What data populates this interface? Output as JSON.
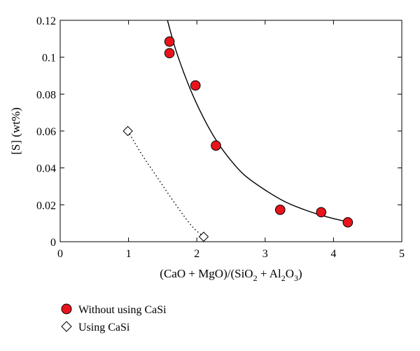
{
  "chart_data": {
    "type": "scatter",
    "xlabel_parts": [
      "(CaO + MgO)/(SiO",
      "2",
      " + Al",
      "2",
      "O",
      "3",
      ")"
    ],
    "ylabel": "[S] (wt%)",
    "xlim": [
      0,
      5
    ],
    "ylim": [
      0,
      0.12
    ],
    "x_ticks": [
      0,
      1,
      2,
      3,
      4,
      5
    ],
    "x_tick_labels": [
      "0",
      "1",
      "2",
      "3",
      "4",
      "5"
    ],
    "y_ticks": [
      0,
      0.02,
      0.04,
      0.06,
      0.08,
      0.1,
      0.12
    ],
    "y_tick_labels": [
      "0",
      "0.02",
      "0.04",
      "0.06",
      "0.08",
      "0.1",
      "0.12"
    ],
    "grid": false,
    "legend_position": "bottom-left-below",
    "series": [
      {
        "name": "Without using CaSi",
        "marker": "circle",
        "color": "#e8141c",
        "points": [
          {
            "x": 1.6,
            "y": 0.1085
          },
          {
            "x": 1.6,
            "y": 0.1022
          },
          {
            "x": 1.98,
            "y": 0.0847
          },
          {
            "x": 2.28,
            "y": 0.0521
          },
          {
            "x": 3.22,
            "y": 0.0173
          },
          {
            "x": 3.82,
            "y": 0.016
          },
          {
            "x": 4.21,
            "y": 0.0105
          }
        ],
        "fit": {
          "style": "solid",
          "points": [
            {
              "x": 1.57,
              "y": 0.12
            },
            {
              "x": 1.7,
              "y": 0.103
            },
            {
              "x": 1.9,
              "y": 0.083
            },
            {
              "x": 2.1,
              "y": 0.067
            },
            {
              "x": 2.3,
              "y": 0.054
            },
            {
              "x": 2.5,
              "y": 0.044
            },
            {
              "x": 2.7,
              "y": 0.036
            },
            {
              "x": 3.0,
              "y": 0.028
            },
            {
              "x": 3.3,
              "y": 0.0215
            },
            {
              "x": 3.6,
              "y": 0.017
            },
            {
              "x": 3.9,
              "y": 0.0135
            },
            {
              "x": 4.2,
              "y": 0.0108
            }
          ]
        }
      },
      {
        "name": "Using CaSi",
        "marker": "diamond",
        "color": "#ffffff",
        "points": [
          {
            "x": 0.99,
            "y": 0.06
          },
          {
            "x": 2.1,
            "y": 0.0027
          }
        ],
        "fit": {
          "style": "dotted",
          "points": [
            {
              "x": 0.99,
              "y": 0.06
            },
            {
              "x": 1.2,
              "y": 0.047
            },
            {
              "x": 1.4,
              "y": 0.036
            },
            {
              "x": 1.6,
              "y": 0.025
            },
            {
              "x": 1.8,
              "y": 0.0145
            },
            {
              "x": 1.95,
              "y": 0.0075
            },
            {
              "x": 2.1,
              "y": 0.0027
            }
          ]
        }
      }
    ]
  }
}
